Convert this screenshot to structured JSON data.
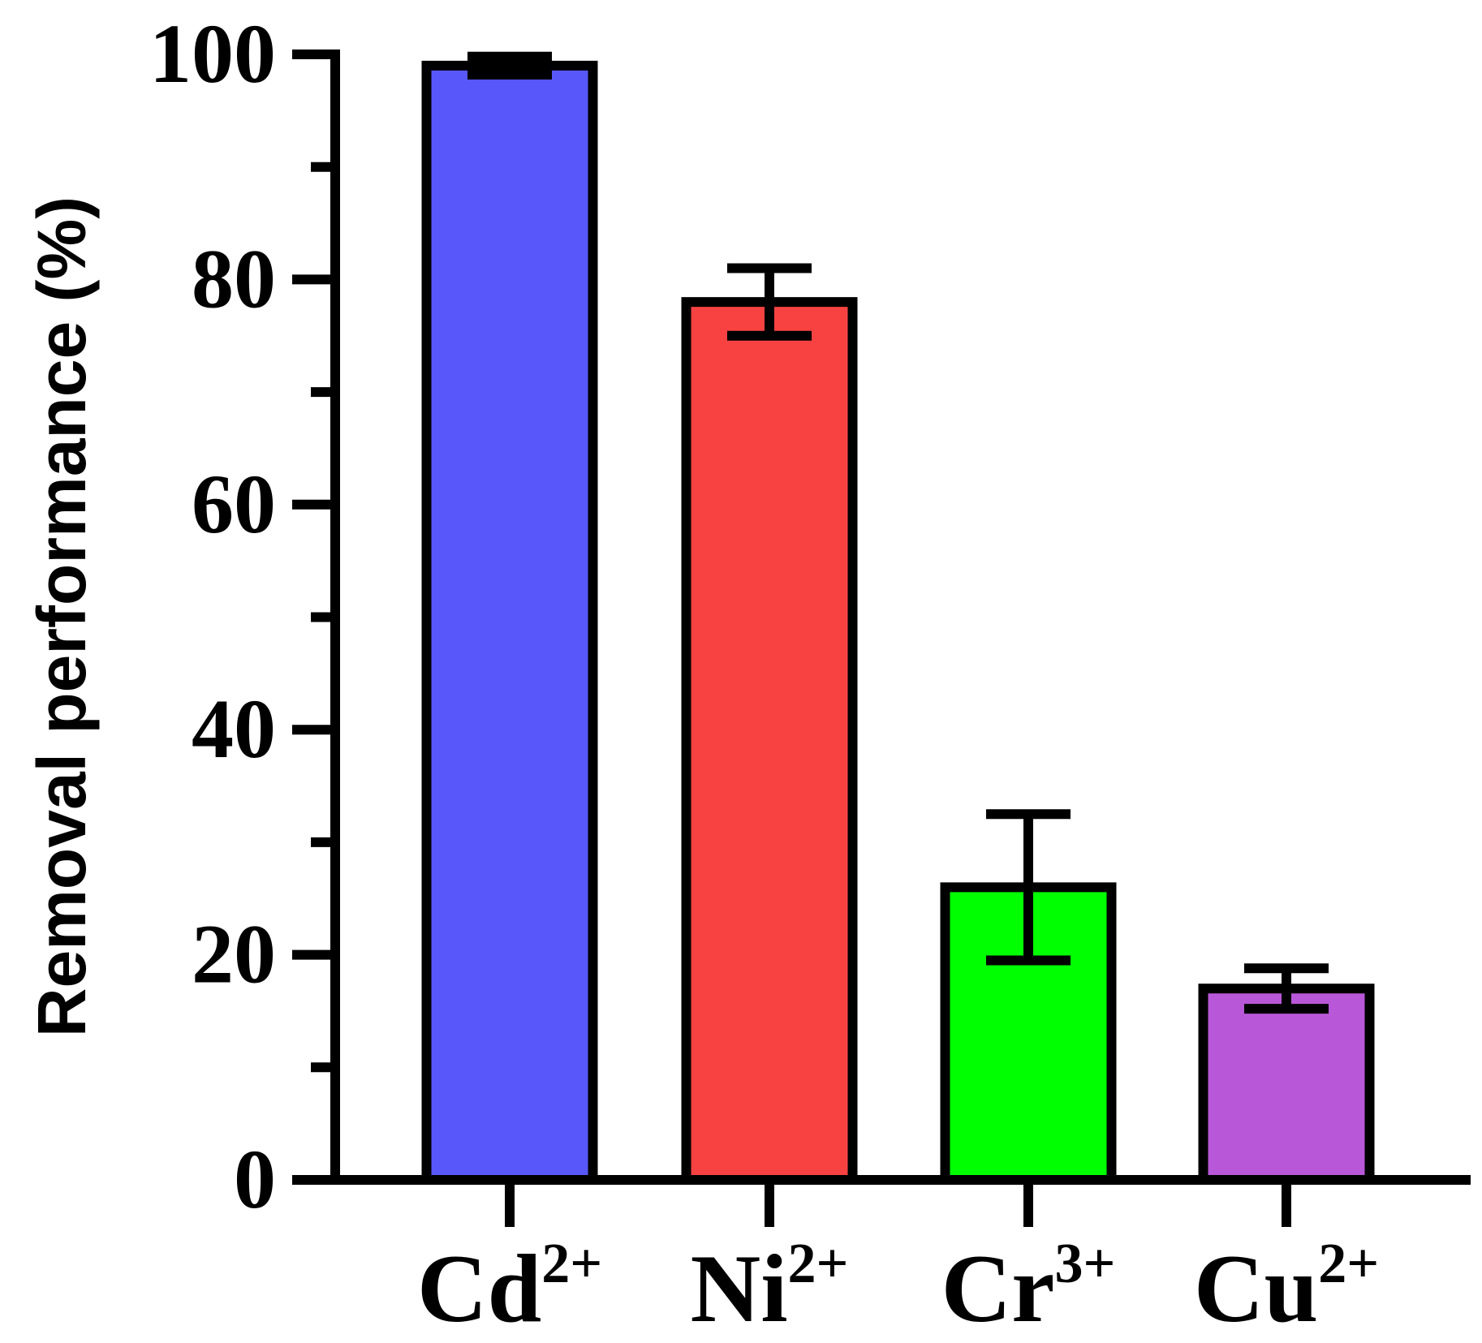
{
  "chart_data": {
    "type": "bar",
    "categories": [
      {
        "base": "Cd",
        "sup": "2+"
      },
      {
        "base": "Ni",
        "sup": "2+"
      },
      {
        "base": "Cr",
        "sup": "3+"
      },
      {
        "base": "Cu",
        "sup": "2+"
      }
    ],
    "values": [
      99,
      78,
      26,
      17
    ],
    "errors": [
      0.8,
      3,
      6.5,
      1.8
    ],
    "colors": [
      "#5858fa",
      "#f84242",
      "#00ff00",
      "#b858d8"
    ],
    "ylabel": "Removal performance (%)",
    "ylim": [
      0,
      100
    ],
    "yticks": [
      0,
      20,
      40,
      60,
      80,
      100
    ],
    "minor_yticks": [
      10,
      30,
      50,
      70,
      90
    ],
    "grid": false,
    "legend": "none"
  }
}
